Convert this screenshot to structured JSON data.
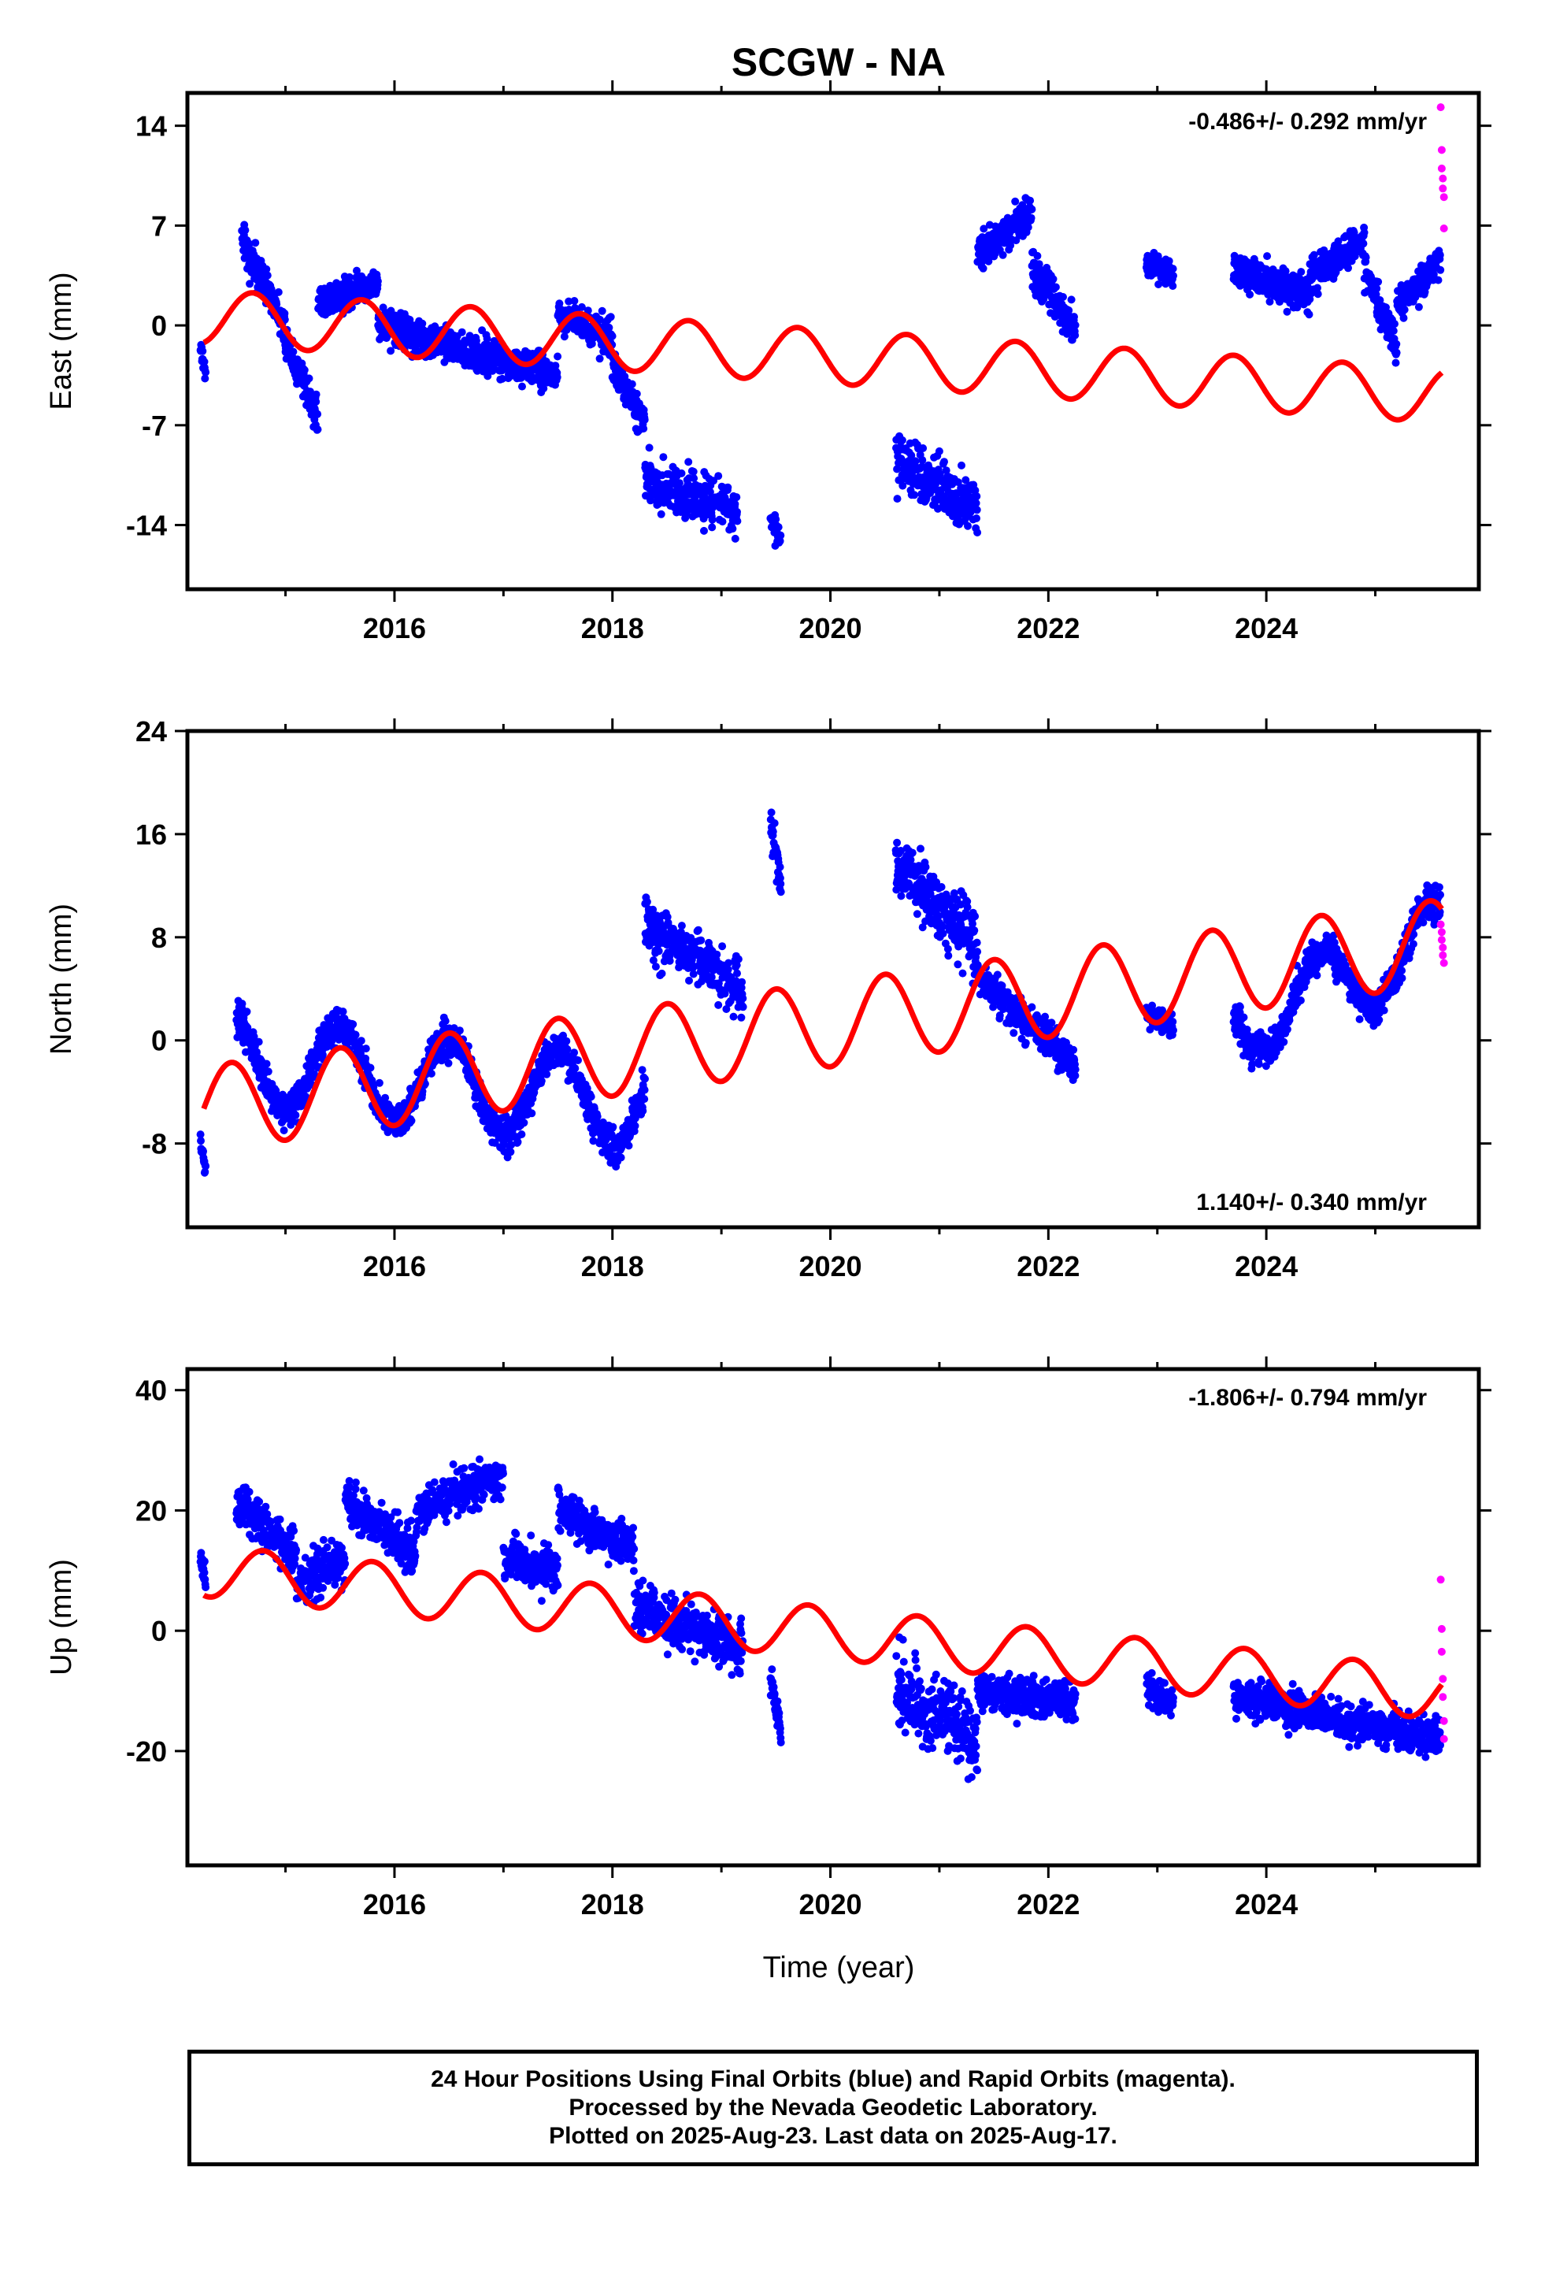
{
  "figure": {
    "title": "SCGW - NA",
    "x_axis_title": "Time (year)"
  },
  "legend_text": [
    "24 Hour Positions Using Final Orbits (blue) and Rapid Orbits (magenta).",
    "Processed by the Nevada Geodetic Laboratory.",
    "Plotted on 2025-Aug-23. Last data on 2025-Aug-17."
  ],
  "colors": {
    "final_orbits": "#0000ff",
    "rapid_orbits": "#ff00ff",
    "model_fit": "#ff0000",
    "frame": "#000000"
  },
  "chart_data": [
    {
      "type": "scatter",
      "panel": "east",
      "ylabel": "East (mm)",
      "xlabel": "",
      "rate_label": "-0.486+/- 0.292 mm/yr",
      "rate_position": "top-right",
      "xlim": [
        2014.1,
        2025.95
      ],
      "ylim": [
        -18.5,
        16.3
      ],
      "x_ticks": [
        2016,
        2018,
        2020,
        2022,
        2024
      ],
      "y_ticks": [
        14,
        7,
        0,
        -7,
        -14
      ],
      "grid": false,
      "series": [
        {
          "name": "Final Orbits (blue)",
          "segments": [
            {
              "x_start": 2014.22,
              "x_end": 2014.27,
              "center": [
                -1.5,
                -3.5
              ],
              "spread": 1.2
            },
            {
              "x_start": 2014.6,
              "x_end": 2015.0,
              "center": [
                6.0,
                0.0
              ],
              "spread": 1.6
            },
            {
              "x_start": 2015.0,
              "x_end": 2015.3,
              "center": [
                -1.0,
                -6.5
              ],
              "spread": 1.6
            },
            {
              "x_start": 2015.3,
              "x_end": 2015.85,
              "center": [
                1.5,
                3.0
              ],
              "spread": 1.5
            },
            {
              "x_start": 2015.85,
              "x_end": 2017.5,
              "center": [
                0.0,
                -3.5
              ],
              "spread": 1.6
            },
            {
              "x_start": 2017.5,
              "x_end": 2018.0,
              "center": [
                1.0,
                -1.0
              ],
              "spread": 1.5
            },
            {
              "x_start": 2018.0,
              "x_end": 2018.3,
              "center": [
                -3.0,
                -7.0
              ],
              "spread": 1.6
            },
            {
              "x_start": 2018.3,
              "x_end": 2019.15,
              "center": [
                -11.0,
                -13.0
              ],
              "spread": 2.2
            },
            {
              "x_start": 2019.45,
              "x_end": 2019.55,
              "center": [
                -13.5,
                -15.0
              ],
              "spread": 1.3
            },
            {
              "x_start": 2020.6,
              "x_end": 2021.35,
              "center": [
                -9.0,
                -13.0
              ],
              "spread": 2.4
            },
            {
              "x_start": 2021.35,
              "x_end": 2021.85,
              "center": [
                5.0,
                8.0
              ],
              "spread": 1.6
            },
            {
              "x_start": 2021.85,
              "x_end": 2022.25,
              "center": [
                4.0,
                -0.5
              ],
              "spread": 1.8
            },
            {
              "x_start": 2022.9,
              "x_end": 2023.15,
              "center": [
                4.5,
                3.5
              ],
              "spread": 1.3
            },
            {
              "x_start": 2023.7,
              "x_end": 2024.4,
              "center": [
                4.0,
                2.0
              ],
              "spread": 1.6
            },
            {
              "x_start": 2024.4,
              "x_end": 2024.9,
              "center": [
                3.5,
                6.0
              ],
              "spread": 1.5
            },
            {
              "x_start": 2024.9,
              "x_end": 2025.2,
              "center": [
                4.0,
                -1.5
              ],
              "spread": 1.6
            },
            {
              "x_start": 2025.2,
              "x_end": 2025.6,
              "center": [
                1.5,
                4.5
              ],
              "spread": 1.4
            }
          ]
        },
        {
          "name": "Rapid Orbits (magenta)",
          "points": [
            [
              2025.6,
              15.3
            ],
            [
              2025.61,
              12.3
            ],
            [
              2025.61,
              11.0
            ],
            [
              2025.62,
              10.3
            ],
            [
              2025.62,
              9.6
            ],
            [
              2025.63,
              9.0
            ],
            [
              2025.63,
              6.8
            ]
          ]
        },
        {
          "name": "Model",
          "model": {
            "offset": 0.6,
            "trend": -0.486,
            "t0": 2014.25,
            "amplitude": 1.9,
            "phase_peak": 2014.7
          }
        }
      ]
    },
    {
      "type": "scatter",
      "panel": "north",
      "ylabel": "North (mm)",
      "xlabel": "",
      "rate_label": "1.140+/- 0.340 mm/yr",
      "rate_position": "bottom-right",
      "xlim": [
        2014.1,
        2025.95
      ],
      "ylim": [
        -14.5,
        24.0
      ],
      "x_ticks": [
        2016,
        2018,
        2020,
        2022,
        2024
      ],
      "y_ticks": [
        24,
        16,
        8,
        0,
        -8
      ],
      "grid": false,
      "series": [
        {
          "name": "Final Orbits (blue)",
          "segments": [
            {
              "x_start": 2014.22,
              "x_end": 2014.27,
              "center": [
                -8.0,
                -10.0
              ],
              "spread": 1.1
            },
            {
              "x_start": 2014.55,
              "x_end": 2018.3,
              "center": [
                -1.5,
                -5.0
              ],
              "spread": 1.8,
              "seasonal": 3.5
            },
            {
              "x_start": 2018.3,
              "x_end": 2019.2,
              "center": [
                9.0,
                4.0
              ],
              "spread": 2.6
            },
            {
              "x_start": 2019.45,
              "x_end": 2019.55,
              "center": [
                17.0,
                12.0
              ],
              "spread": 1.8
            },
            {
              "x_start": 2020.6,
              "x_end": 2021.35,
              "center": [
                14.0,
                7.0
              ],
              "spread": 3.2
            },
            {
              "x_start": 2021.35,
              "x_end": 2022.25,
              "center": [
                5.0,
                -2.0
              ],
              "spread": 1.8
            },
            {
              "x_start": 2022.9,
              "x_end": 2023.15,
              "center": [
                2.0,
                1.0
              ],
              "spread": 1.2
            },
            {
              "x_start": 2023.7,
              "x_end": 2025.6,
              "center": [
                1.0,
                8.0
              ],
              "spread": 1.8,
              "seasonal": 3.0
            }
          ]
        },
        {
          "name": "Rapid Orbits (magenta)",
          "points": [
            [
              2025.6,
              9.0
            ],
            [
              2025.61,
              8.4
            ],
            [
              2025.61,
              7.8
            ],
            [
              2025.62,
              7.2
            ],
            [
              2025.62,
              6.6
            ],
            [
              2025.63,
              6.0
            ]
          ]
        },
        {
          "name": "Model",
          "model": {
            "offset": -5.3,
            "trend": 1.14,
            "t0": 2014.25,
            "amplitude": 3.3,
            "phase_peak": 2014.5
          }
        }
      ]
    },
    {
      "type": "scatter",
      "panel": "up",
      "ylabel": "Up (mm)",
      "xlabel": "Time (year)",
      "rate_label": "-1.806+/- 0.794 mm/yr",
      "rate_position": "top-right",
      "xlim": [
        2014.1,
        2025.95
      ],
      "ylim": [
        -39.0,
        43.5
      ],
      "x_ticks": [
        2016,
        2018,
        2020,
        2022,
        2024
      ],
      "y_ticks": [
        40,
        20,
        0,
        -20
      ],
      "grid": false,
      "series": [
        {
          "name": "Final Orbits (blue)",
          "segments": [
            {
              "x_start": 2014.22,
              "x_end": 2014.27,
              "center": [
                12.0,
                8.0
              ],
              "spread": 3.0
            },
            {
              "x_start": 2014.55,
              "x_end": 2015.1,
              "center": [
                21.0,
                13.0
              ],
              "spread": 4.5
            },
            {
              "x_start": 2015.1,
              "x_end": 2015.55,
              "center": [
                8.0,
                12.0
              ],
              "spread": 4.5
            },
            {
              "x_start": 2015.55,
              "x_end": 2016.2,
              "center": [
                22.0,
                12.0
              ],
              "spread": 4.5
            },
            {
              "x_start": 2016.2,
              "x_end": 2017.0,
              "center": [
                20.0,
                26.0
              ],
              "spread": 4.5
            },
            {
              "x_start": 2017.0,
              "x_end": 2017.5,
              "center": [
                12.0,
                10.0
              ],
              "spread": 4.5
            },
            {
              "x_start": 2017.5,
              "x_end": 2018.2,
              "center": [
                20.0,
                14.0
              ],
              "spread": 4.5
            },
            {
              "x_start": 2018.2,
              "x_end": 2019.2,
              "center": [
                4.0,
                -3.0
              ],
              "spread": 5.5
            },
            {
              "x_start": 2019.45,
              "x_end": 2019.55,
              "center": [
                -8.0,
                -16.0
              ],
              "spread": 4.0
            },
            {
              "x_start": 2020.6,
              "x_end": 2021.35,
              "center": [
                -10.0,
                -18.0
              ],
              "spread": 8.0
            },
            {
              "x_start": 2021.35,
              "x_end": 2022.25,
              "center": [
                -10.0,
                -12.0
              ],
              "spread": 4.0
            },
            {
              "x_start": 2022.9,
              "x_end": 2023.15,
              "center": [
                -10.0,
                -12.0
              ],
              "spread": 3.0
            },
            {
              "x_start": 2023.7,
              "x_end": 2025.6,
              "center": [
                -11.0,
                -18.0
              ],
              "spread": 4.0
            }
          ]
        },
        {
          "name": "Rapid Orbits (magenta)",
          "points": [
            [
              2025.6,
              8.5
            ],
            [
              2025.61,
              0.3
            ],
            [
              2025.61,
              -3.5
            ],
            [
              2025.62,
              -8.0
            ],
            [
              2025.62,
              -11.0
            ],
            [
              2025.63,
              -15.0
            ],
            [
              2025.63,
              -18.0
            ]
          ]
        },
        {
          "name": "Model",
          "model": {
            "offset": 10.0,
            "trend": -1.806,
            "t0": 2014.25,
            "amplitude": 4.3,
            "phase_peak": 2014.8
          }
        }
      ]
    }
  ]
}
